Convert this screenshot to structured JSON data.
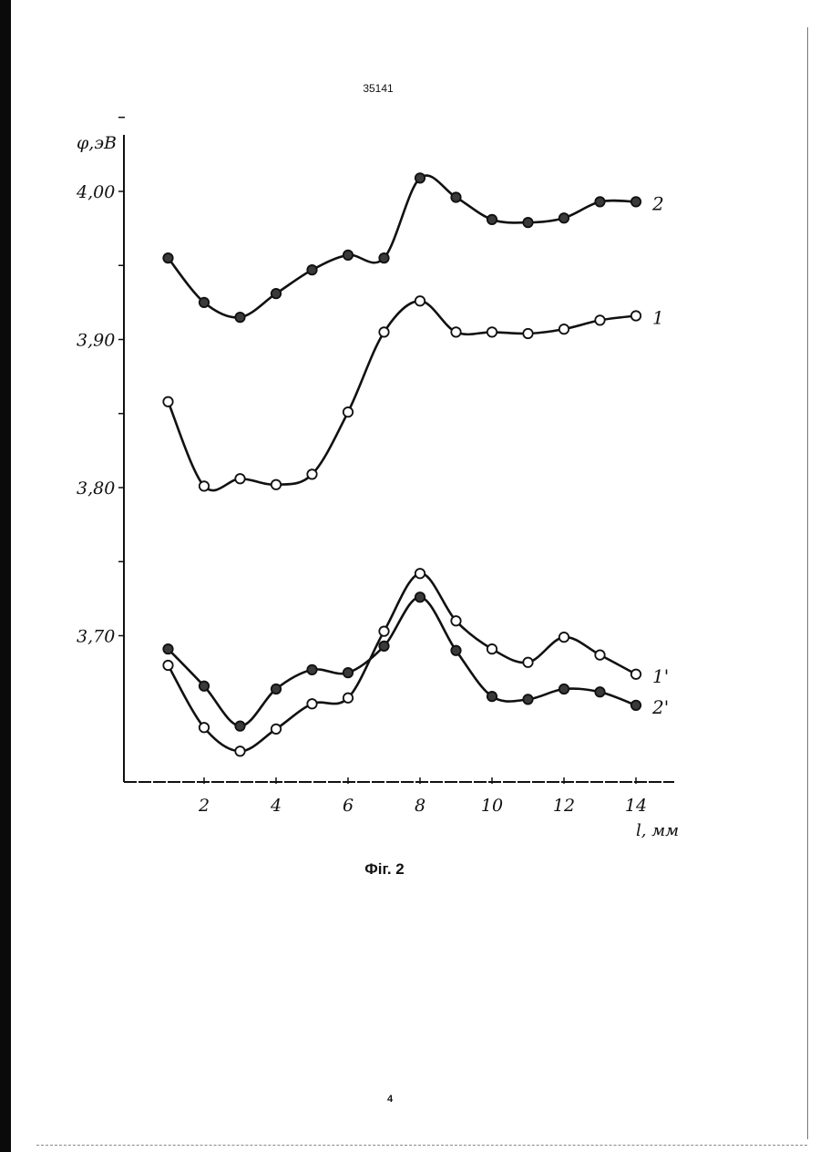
{
  "document": {
    "patent_number": "35141",
    "figure_caption": "Фіг. 2",
    "page_number": "4"
  },
  "chart_data": {
    "type": "line",
    "ylabel": "φ,эВ",
    "xlabel": "l, мм",
    "x_ticks": [
      "2",
      "4",
      "6",
      "8",
      "10",
      "12",
      "14"
    ],
    "y_ticks": [
      "4,00",
      "3,90",
      "3,80",
      "3,70"
    ],
    "xlim": [
      0,
      15
    ],
    "ylim": [
      3.605,
      4.045
    ],
    "grid": false,
    "series": [
      {
        "name": "2",
        "marker": "filled",
        "x": [
          1,
          2,
          3,
          4,
          5,
          6,
          7,
          8,
          9,
          10,
          11,
          12,
          13,
          14
        ],
        "values": [
          3.955,
          3.925,
          3.915,
          3.931,
          3.947,
          3.957,
          3.955,
          4.009,
          3.996,
          3.981,
          3.979,
          3.982,
          3.993,
          3.993
        ]
      },
      {
        "name": "1",
        "marker": "open",
        "x": [
          1,
          2,
          3,
          4,
          5,
          6,
          7,
          8,
          9,
          10,
          11,
          12,
          13,
          14
        ],
        "values": [
          3.858,
          3.801,
          3.806,
          3.802,
          3.809,
          3.851,
          3.905,
          3.926,
          3.905,
          3.905,
          3.904,
          3.907,
          3.913,
          3.916
        ]
      },
      {
        "name": "1'",
        "marker": "open",
        "x": [
          1,
          2,
          3,
          4,
          5,
          6,
          7,
          8,
          9,
          10,
          11,
          12,
          13,
          14
        ],
        "values": [
          3.68,
          3.638,
          3.622,
          3.637,
          3.654,
          3.658,
          3.703,
          3.742,
          3.71,
          3.691,
          3.682,
          3.699,
          3.687,
          3.674
        ]
      },
      {
        "name": "2'",
        "marker": "filled",
        "x": [
          1,
          2,
          3,
          4,
          5,
          6,
          7,
          8,
          9,
          10,
          11,
          12,
          13,
          14
        ],
        "values": [
          3.691,
          3.666,
          3.639,
          3.664,
          3.677,
          3.675,
          3.693,
          3.726,
          3.69,
          3.659,
          3.657,
          3.664,
          3.662,
          3.653
        ]
      }
    ]
  }
}
